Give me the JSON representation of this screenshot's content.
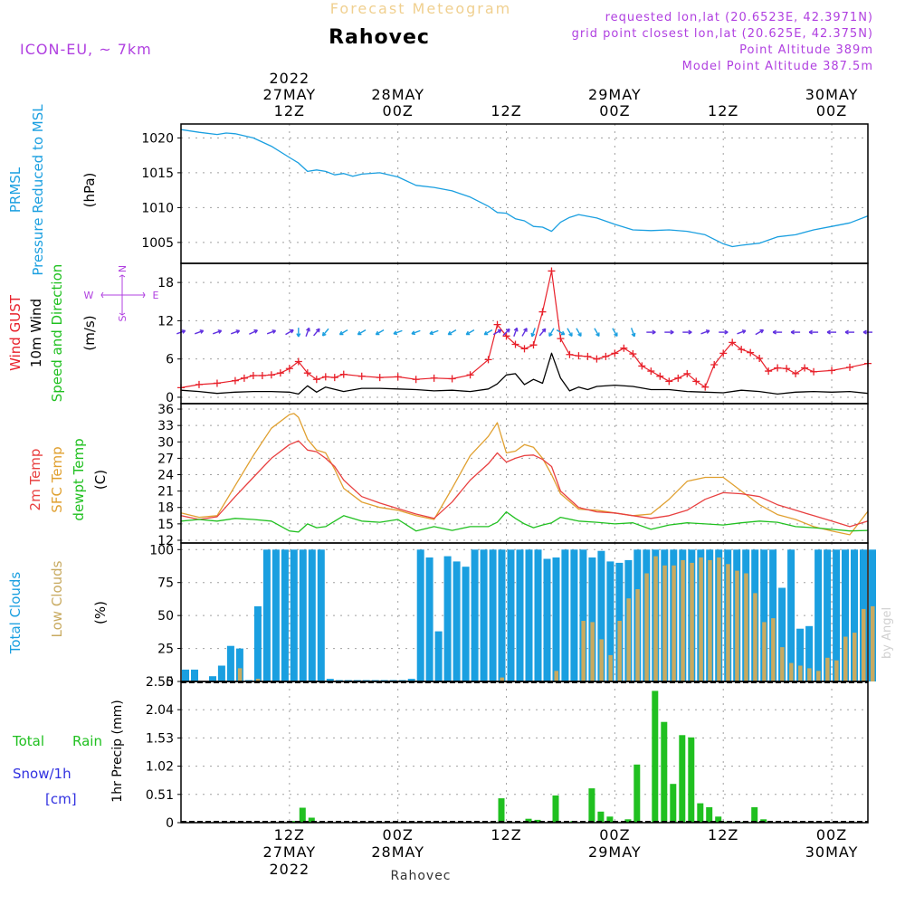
{
  "header": {
    "forecast_label": "Forecast Meteogram",
    "station": "Rahovec",
    "model": "ICON-EU, ~ 7km",
    "requested": "requested lon,lat (20.6523E, 42.3971N)",
    "grid_point": "grid point closest lon,lat (20.625E, 42.375N)",
    "point_altitude": "Point Altitude 389m",
    "model_altitude": "Model Point Altitude 387.5m",
    "credit": "by Angel",
    "footer_station": "Rahovec"
  },
  "time_axis": {
    "start_hour": -12,
    "end_hour": 64,
    "ticks": [
      {
        "hour": 0,
        "top": "12Z",
        "date": "27MAY",
        "year": "2022"
      },
      {
        "hour": 12,
        "top": "00Z",
        "date": "28MAY",
        "year": ""
      },
      {
        "hour": 24,
        "top": "12Z",
        "date": "",
        "year": ""
      },
      {
        "hour": 36,
        "top": "00Z",
        "date": "29MAY",
        "year": ""
      },
      {
        "hour": 48,
        "top": "12Z",
        "date": "",
        "year": ""
      },
      {
        "hour": 60,
        "top": "00Z",
        "date": "30MAY",
        "year": ""
      }
    ]
  },
  "colors": {
    "pressure": "#1a9fe0",
    "gust": "#e8202a",
    "wind": "#000000",
    "temp2m": "#e84040",
    "sfc_temp": "#e0a030",
    "dewpoint": "#20c020",
    "total_clouds": "#1a9fe0",
    "low_clouds": "#c8aa60",
    "rain": "#20c020",
    "snow": "#3030e0",
    "wind_dir_legend": "#b040e0"
  },
  "panels": {
    "pressure": {
      "labels": [
        "PRMSL",
        "Pressure Reduced to MSL",
        "(hPa)"
      ],
      "ylim": [
        1002,
        1022
      ],
      "ticks": [
        1005,
        1010,
        1015,
        1020
      ]
    },
    "wind": {
      "labels": [
        "Wind GUST",
        "10m Wind",
        "Speed and Direction",
        "(m/s)"
      ],
      "ylim": [
        -1,
        21
      ],
      "ticks": [
        0,
        6,
        12,
        18
      ],
      "compass": {
        "n": "N",
        "s": "S",
        "w": "W",
        "e": "E"
      }
    },
    "temp": {
      "labels": [
        "2m Temp",
        "SFC Temp",
        "dewpt Temp",
        "(C)"
      ],
      "ylim": [
        11.5,
        37
      ],
      "ticks": [
        12,
        15,
        18,
        21,
        24,
        27,
        30,
        33,
        36
      ]
    },
    "clouds": {
      "labels": [
        "Total Clouds",
        "Low Clouds",
        "(%)"
      ],
      "ylim": [
        0,
        105
      ],
      "ticks": [
        0,
        25,
        50,
        75,
        100
      ]
    },
    "precip": {
      "labels": [
        "Total",
        "Rain",
        "Snow/1h",
        "[cm]",
        "1hr Precip (mm)"
      ],
      "ylim": [
        0,
        2.55
      ],
      "ticks": [
        0,
        0.51,
        1.02,
        1.53,
        2.04,
        2.55
      ]
    }
  },
  "chart_data": {
    "type": "line",
    "x_unit": "hours relative to 27MAY 12Z",
    "pressure_hpa": {
      "x": [
        -12,
        -10,
        -8,
        -7,
        -6,
        -4,
        -2,
        0,
        1,
        2,
        3,
        4,
        5,
        6,
        7,
        8,
        10,
        12,
        14,
        16,
        18,
        20,
        22,
        23,
        24,
        25,
        26,
        27,
        28,
        29,
        30,
        31,
        32,
        34,
        36,
        38,
        40,
        42,
        44,
        46,
        48,
        49,
        50,
        52,
        54,
        56,
        58,
        60,
        62,
        64
      ],
      "values": [
        1021.2,
        1020.8,
        1020.5,
        1020.7,
        1020.6,
        1020,
        1018.8,
        1017.2,
        1016.4,
        1015.2,
        1015.4,
        1015.2,
        1014.7,
        1014.9,
        1014.5,
        1014.8,
        1015,
        1014.4,
        1013.2,
        1012.9,
        1012.4,
        1011.5,
        1010.2,
        1009.3,
        1009.2,
        1008.4,
        1008.1,
        1007.3,
        1007.2,
        1006.6,
        1007.9,
        1008.6,
        1009,
        1008.5,
        1007.6,
        1006.8,
        1006.7,
        1006.8,
        1006.6,
        1006.1,
        1004.8,
        1004.4,
        1004.6,
        1004.9,
        1005.8,
        1006.1,
        1006.8,
        1007.3,
        1007.8,
        1008.8
      ]
    },
    "wind_speed_ms": {
      "x": [
        -12,
        -10,
        -8,
        -6,
        -4,
        -2,
        0,
        1,
        2,
        3,
        4,
        6,
        8,
        10,
        12,
        14,
        16,
        18,
        20,
        22,
        23,
        24,
        25,
        26,
        27,
        28,
        29,
        30,
        31,
        32,
        33,
        34,
        36,
        38,
        40,
        42,
        44,
        46,
        48,
        50,
        52,
        54,
        56,
        58,
        60,
        62,
        64
      ],
      "values": [
        1.1,
        0.9,
        0.6,
        0.8,
        0.9,
        0.9,
        0.8,
        0.5,
        1.8,
        0.8,
        1.6,
        0.9,
        1.4,
        1.4,
        1.3,
        1.2,
        1,
        1.1,
        0.9,
        1.3,
        2.1,
        3.5,
        3.7,
        2,
        2.8,
        2.2,
        6.9,
        3,
        1,
        1.6,
        1.2,
        1.7,
        1.9,
        1.7,
        1.2,
        1.2,
        0.9,
        0.8,
        0.7,
        1.1,
        0.9,
        0.5,
        0.8,
        0.9,
        0.8,
        0.9,
        0.6
      ]
    },
    "wind_gust_ms": {
      "x": [
        -12,
        -10,
        -8,
        -6,
        -5,
        -4,
        -3,
        -2,
        -1,
        0,
        1,
        2,
        3,
        4,
        5,
        6,
        8,
        10,
        12,
        14,
        16,
        18,
        20,
        22,
        23,
        24,
        25,
        26,
        27,
        28,
        29,
        30,
        31,
        32,
        33,
        34,
        35,
        36,
        37,
        38,
        39,
        40,
        41,
        42,
        43,
        44,
        45,
        46,
        47,
        48,
        49,
        50,
        51,
        52,
        53,
        54,
        55,
        56,
        57,
        58,
        60,
        62,
        64
      ],
      "values": [
        1.5,
        2,
        2.2,
        2.6,
        3,
        3.4,
        3.4,
        3.5,
        3.8,
        4.5,
        5.6,
        3.8,
        2.8,
        3.2,
        3.1,
        3.6,
        3.3,
        3.1,
        3.2,
        2.8,
        3,
        2.9,
        3.5,
        5.9,
        11.4,
        9.6,
        8.3,
        7.6,
        8.2,
        13.4,
        19.8,
        9.2,
        6.7,
        6.5,
        6.4,
        6,
        6.4,
        6.9,
        7.7,
        6.8,
        4.9,
        4.1,
        3.3,
        2.5,
        3,
        3.7,
        2.5,
        1.6,
        5.1,
        6.9,
        8.6,
        7.5,
        7,
        6.1,
        4.1,
        4.6,
        4.5,
        3.7,
        4.6,
        4,
        4.2,
        4.7,
        5.3
      ]
    },
    "wind_arrows": {
      "x": [
        -12,
        -10,
        -8,
        -6,
        -4,
        -2,
        0,
        1,
        2,
        3,
        4,
        6,
        8,
        10,
        12,
        14,
        16,
        18,
        20,
        22,
        23,
        24,
        25,
        26,
        27,
        28,
        29,
        30,
        31,
        32,
        34,
        36,
        38,
        40,
        42,
        44,
        46,
        48,
        50,
        52,
        54,
        56,
        58,
        60,
        62,
        64
      ],
      "to_deg": [
        70,
        70,
        70,
        70,
        65,
        70,
        60,
        180,
        20,
        40,
        220,
        240,
        240,
        240,
        250,
        250,
        250,
        240,
        240,
        240,
        60,
        45,
        20,
        30,
        200,
        40,
        210,
        120,
        150,
        150,
        150,
        150,
        160,
        90,
        90,
        90,
        70,
        90,
        70,
        60,
        270,
        270,
        270,
        270,
        270,
        270
      ]
    },
    "temp_2m_c": {
      "x": [
        -12,
        -10,
        -8,
        -6,
        -4,
        -2,
        0,
        1,
        2,
        3,
        4,
        5,
        6,
        8,
        10,
        12,
        14,
        16,
        18,
        20,
        22,
        23,
        24,
        25,
        26,
        27,
        28,
        29,
        30,
        32,
        34,
        36,
        38,
        40,
        42,
        44,
        46,
        48,
        50,
        52,
        54,
        56,
        58,
        60,
        62,
        64
      ],
      "values": [
        16.5,
        15.8,
        16.3,
        20,
        23.5,
        27,
        29.5,
        30.2,
        28.5,
        28.2,
        27,
        25.5,
        23,
        20,
        18.8,
        17.8,
        16.8,
        16,
        19,
        23,
        26,
        28,
        26.3,
        27,
        27.5,
        27.6,
        26.8,
        25.5,
        21,
        18,
        17.2,
        17,
        16.5,
        16,
        16.5,
        17.5,
        19.5,
        20.7,
        20.5,
        20,
        18.5,
        17.5,
        16.5,
        15.5,
        14.5,
        15.5
      ]
    },
    "temp_sfc_c": {
      "x": [
        -12,
        -10,
        -8,
        -6,
        -4,
        -2,
        0,
        0.5,
        1,
        2,
        3,
        4,
        5,
        6,
        8,
        10,
        12,
        14,
        16,
        18,
        20,
        22,
        23,
        24,
        25,
        26,
        27,
        28,
        29,
        30,
        32,
        34,
        36,
        38,
        40,
        42,
        44,
        46,
        48,
        50,
        52,
        54,
        56,
        58,
        60,
        62,
        64
      ],
      "values": [
        17,
        16.2,
        16.5,
        22,
        27.5,
        32.5,
        35,
        35.2,
        34.5,
        30.5,
        28.5,
        28,
        25,
        21.5,
        19,
        18,
        17.5,
        16.5,
        15.8,
        21.5,
        27.5,
        31,
        33.5,
        28,
        28.3,
        29.5,
        29,
        27,
        24,
        20.5,
        17.7,
        17.5,
        17,
        16.5,
        16.8,
        19.5,
        22.8,
        23.5,
        23.5,
        21,
        18.5,
        16.7,
        15.8,
        14.5,
        13.7,
        13,
        17.3
      ]
    },
    "dewpoint_c": {
      "x": [
        -12,
        -10,
        -8,
        -6,
        -4,
        -2,
        0,
        1,
        2,
        3,
        4,
        6,
        8,
        10,
        12,
        14,
        16,
        18,
        20,
        22,
        23,
        24,
        25,
        26,
        27,
        28,
        29,
        30,
        32,
        34,
        36,
        38,
        40,
        42,
        44,
        46,
        48,
        50,
        52,
        54,
        56,
        58,
        60,
        62,
        64
      ],
      "values": [
        15.5,
        15.8,
        15.5,
        16,
        15.8,
        15.5,
        13.7,
        13.5,
        15,
        14.3,
        14.5,
        16.5,
        15.5,
        15.3,
        15.8,
        13.7,
        14.5,
        13.8,
        14.5,
        14.5,
        15.3,
        17.2,
        16,
        15,
        14.3,
        14.8,
        15.2,
        16.2,
        15.5,
        15.3,
        15,
        15.2,
        14,
        14.8,
        15.2,
        15,
        14.8,
        15.2,
        15.5,
        15.3,
        14.5,
        14.3,
        14,
        13.7,
        13.8
      ]
    },
    "total_clouds_pct": {
      "x": [
        -12,
        -11,
        -10,
        -9,
        -8,
        -7,
        -6,
        -5,
        -4,
        -3,
        -2,
        -1,
        0,
        1,
        2,
        3,
        4,
        5,
        6,
        7,
        8,
        9,
        10,
        11,
        12,
        13,
        14,
        15,
        16,
        17,
        18,
        19,
        20,
        21,
        22,
        23,
        24,
        25,
        26,
        27,
        28,
        29,
        30,
        31,
        32,
        33,
        34,
        35,
        36,
        37,
        38,
        39,
        40,
        41,
        42,
        43,
        44,
        45,
        46,
        47,
        48,
        49,
        50,
        51,
        52,
        53,
        54,
        55,
        56,
        57,
        58,
        59,
        60,
        61,
        62,
        63,
        64
      ],
      "values": [
        9,
        9,
        0,
        4,
        12,
        27,
        25,
        1,
        57,
        100,
        100,
        100,
        100,
        100,
        100,
        100,
        2,
        1,
        1,
        1,
        1,
        1,
        1,
        1,
        1,
        2,
        100,
        94,
        38,
        95,
        91,
        87,
        100,
        100,
        100,
        100,
        100,
        100,
        100,
        100,
        93,
        94,
        100,
        100,
        100,
        94,
        99,
        91,
        90,
        92,
        100,
        100,
        100,
        100,
        100,
        100,
        100,
        100,
        100,
        100,
        100,
        100,
        100,
        100,
        100,
        100,
        71,
        100,
        40,
        42,
        100,
        100,
        100,
        100,
        100,
        100,
        100
      ]
    },
    "low_clouds_pct": {
      "x": [
        -12,
        -11,
        -10,
        -9,
        -8,
        -7,
        -6,
        -5,
        -4,
        -3,
        -2,
        -1,
        0,
        1,
        2,
        3,
        4,
        5,
        6,
        7,
        8,
        9,
        10,
        11,
        12,
        13,
        14,
        15,
        16,
        17,
        18,
        19,
        20,
        21,
        22,
        23,
        24,
        25,
        26,
        27,
        28,
        29,
        30,
        31,
        32,
        33,
        34,
        35,
        36,
        37,
        38,
        39,
        40,
        41,
        42,
        43,
        44,
        45,
        46,
        47,
        48,
        49,
        50,
        51,
        52,
        53,
        54,
        55,
        56,
        57,
        58,
        59,
        60,
        61,
        62,
        63,
        64
      ],
      "values": [
        0,
        0,
        0,
        0,
        0,
        0,
        10,
        0,
        2,
        0,
        0,
        0,
        0,
        0,
        0,
        0,
        0,
        0,
        0,
        0,
        0,
        0,
        0,
        0,
        0,
        0,
        0,
        0,
        0,
        0,
        0,
        0,
        0,
        0,
        0,
        3,
        0,
        0,
        0,
        0,
        0,
        8,
        0,
        0,
        46,
        45,
        32,
        20,
        46,
        63,
        70,
        82,
        95,
        88,
        88,
        92,
        90,
        94,
        92,
        94,
        89,
        84,
        82,
        67,
        45,
        48,
        26,
        14,
        12,
        10,
        8,
        18,
        16,
        34,
        37,
        55,
        57
      ]
    },
    "precip_mm": {
      "x": [
        0,
        1,
        2,
        23,
        26,
        27,
        29,
        31,
        33,
        34,
        35,
        37,
        38,
        40,
        41,
        42,
        43,
        44,
        45,
        46,
        47,
        48,
        49,
        50,
        51,
        52
      ],
      "values": [
        0.03,
        0.27,
        0.09,
        0.44,
        0.07,
        0.05,
        0.49,
        0.03,
        0.62,
        0.2,
        0.11,
        0.06,
        1.05,
        2.38,
        1.82,
        0.7,
        1.58,
        1.54,
        0.35,
        0.28,
        0.11,
        0.02,
        0.02,
        0.02,
        0.28,
        0.06
      ]
    }
  }
}
